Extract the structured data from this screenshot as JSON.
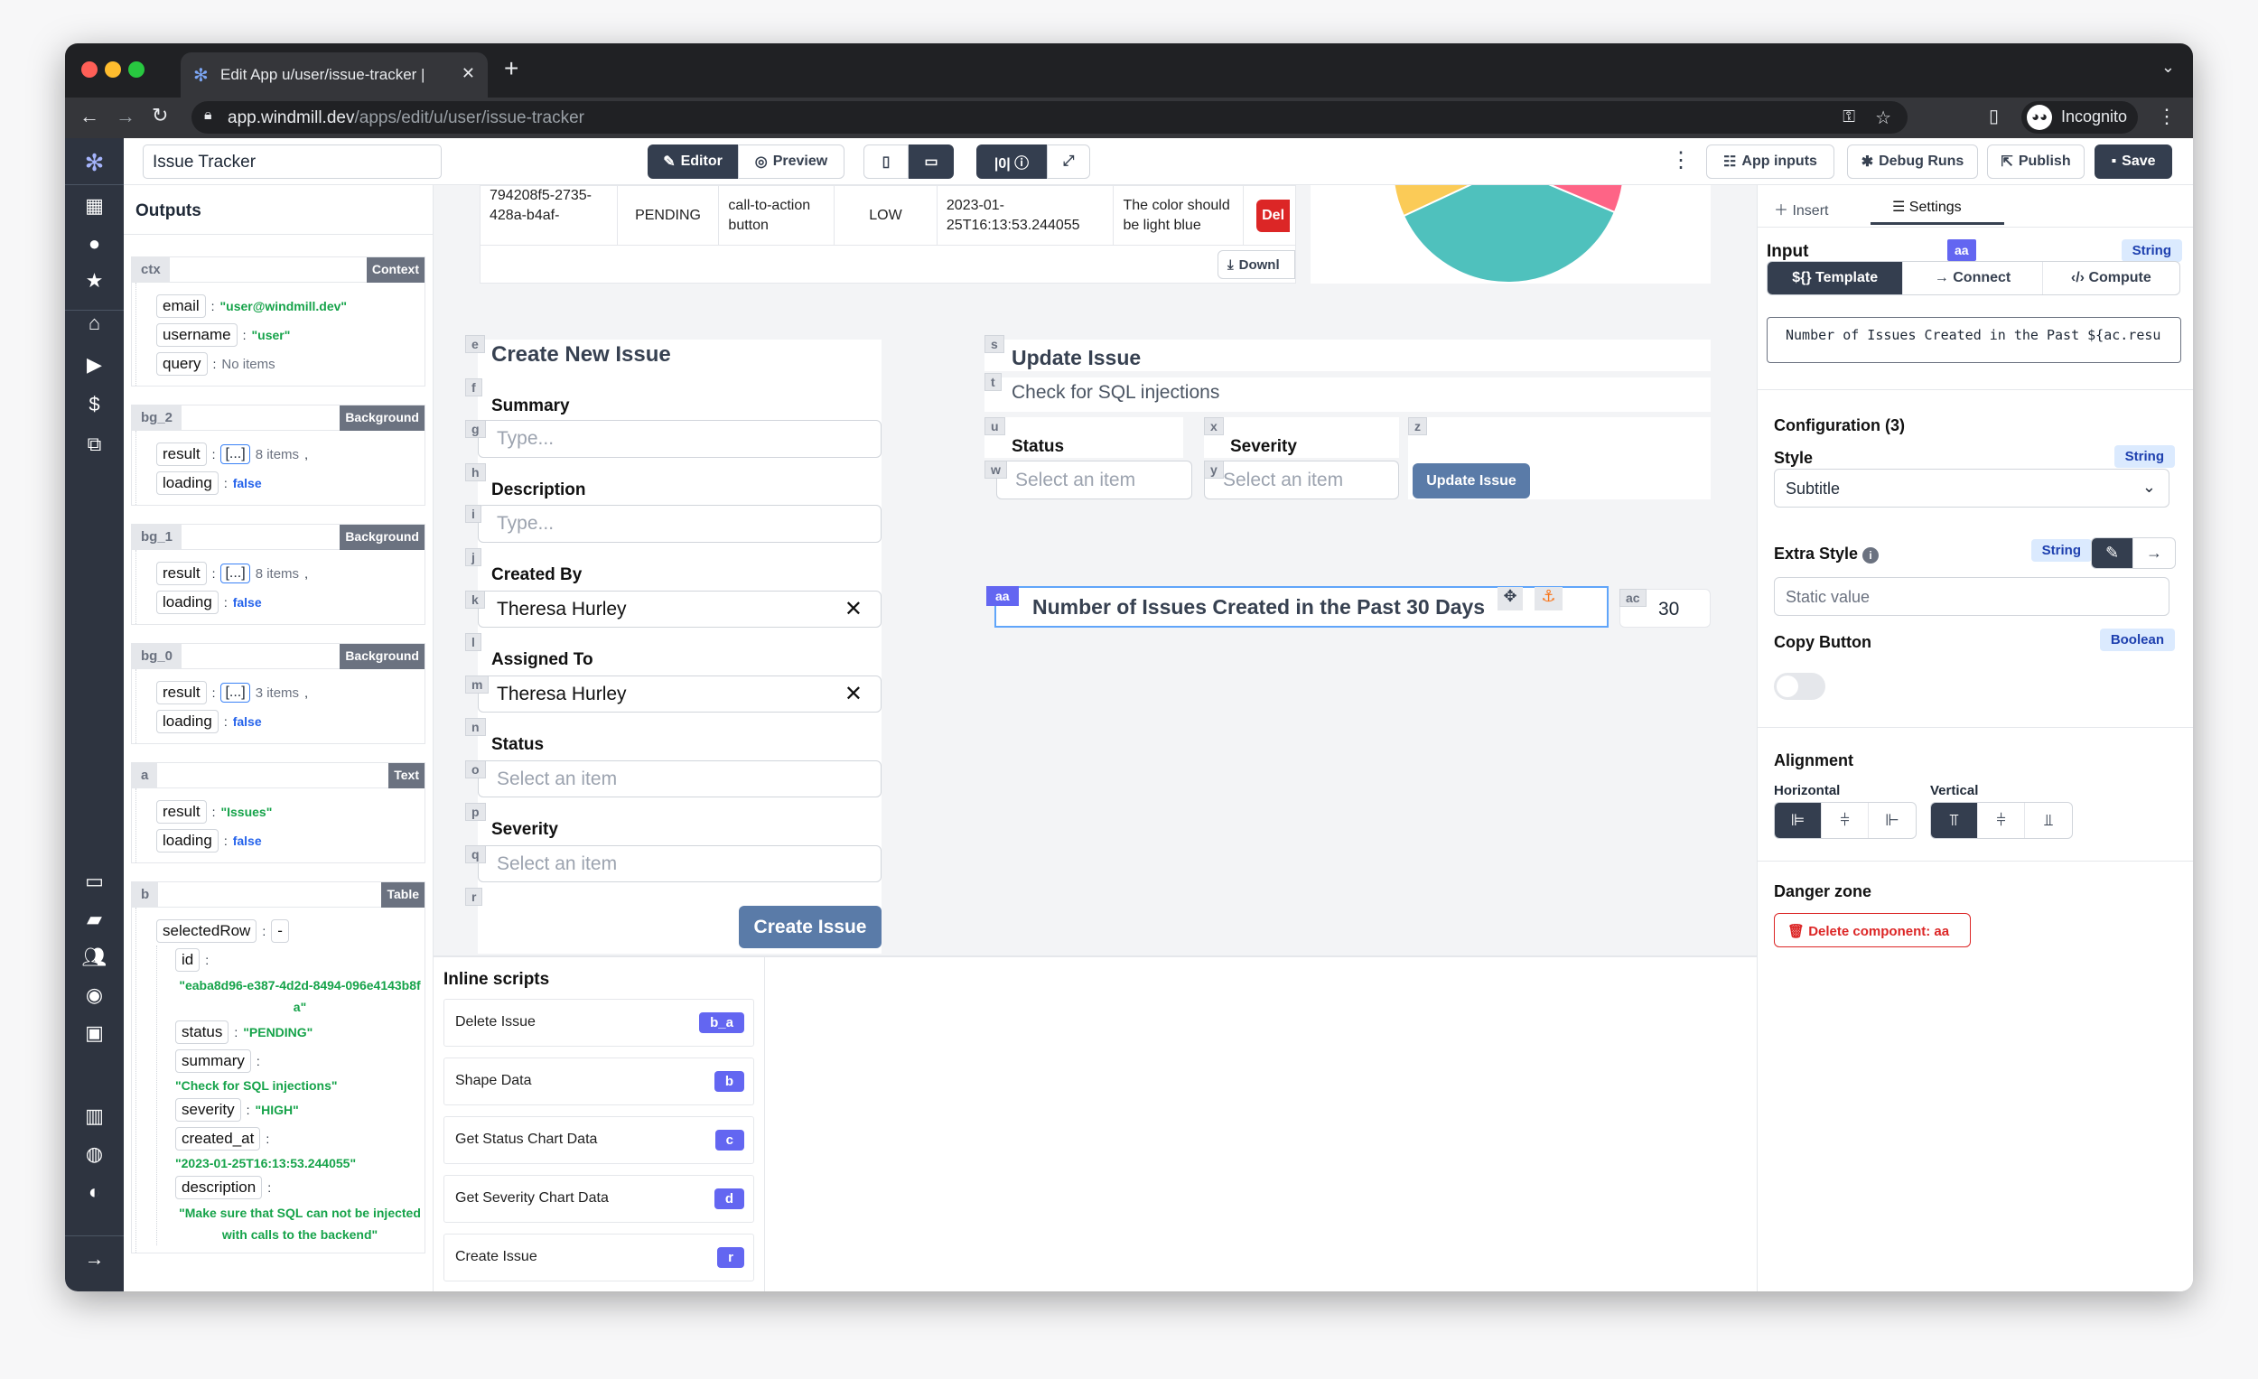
{
  "browser": {
    "tab_title": "Edit App u/user/issue-tracker |",
    "url_host": "app.windmill.dev",
    "url_path": "/apps/edit/u/user/issue-tracker",
    "profile": "Incognito"
  },
  "header": {
    "app_name": "Issue Tracker",
    "editor": "Editor",
    "preview": "Preview",
    "app_inputs": "App inputs",
    "debug_runs": "Debug Runs",
    "publish": "Publish",
    "save": "Save"
  },
  "outputs": {
    "title": "Outputs",
    "ctx": {
      "id": "ctx",
      "type": "Context",
      "email": "\"user@windmill.dev\"",
      "username": "\"user\"",
      "query": "No items"
    },
    "bg_2": {
      "id": "bg_2",
      "type": "Background",
      "result": "8 items",
      "loading": "false"
    },
    "bg_1": {
      "id": "bg_1",
      "type": "Background",
      "result": "8 items",
      "loading": "false"
    },
    "bg_0": {
      "id": "bg_0",
      "type": "Background",
      "result": "3 items",
      "loading": "false"
    },
    "a": {
      "id": "a",
      "type": "Text",
      "result": "\"Issues\"",
      "loading": "false"
    },
    "b": {
      "id": "b",
      "type": "Table",
      "selectedRow": "-",
      "row_id": "\"eaba8d96-e387-4d2d-8494-096e4143b8fa\"",
      "status": "\"PENDING\"",
      "summary": "\"Check for SQL injections\"",
      "severity": "\"HIGH\"",
      "created_at": "\"2023-01-25T16:13:53.244055\"",
      "description": "\"Make sure that SQL can not be injected with calls to the backend\""
    },
    "keys": {
      "email": "email",
      "username": "username",
      "query": "query",
      "result": "result",
      "loading": "loading",
      "selectedRow": "selectedRow",
      "id": "id",
      "status": "status",
      "summary": "summary",
      "severity": "severity",
      "created_at": "created_at",
      "description": "description",
      "array": "[...]"
    }
  },
  "table": {
    "row": [
      "794208f5-2735-428a-b4af-",
      "PENDING",
      "call-to-action button",
      "LOW",
      "2023-01-25T16:13:53.244055",
      "The color should be light blue",
      "Del"
    ],
    "download": "Downl"
  },
  "create_form": {
    "title": "Create New Issue",
    "summary_label": "Summary",
    "summary_placeholder": "Type...",
    "description_label": "Description",
    "description_placeholder": "Type...",
    "created_by_label": "Created By",
    "created_by_value": "Theresa Hurley",
    "assigned_to_label": "Assigned To",
    "assigned_to_value": "Theresa Hurley",
    "status_label": "Status",
    "status_placeholder": "Select an item",
    "severity_label": "Severity",
    "severity_placeholder": "Select an item",
    "submit": "Create Issue",
    "ids": [
      "e",
      "f",
      "g",
      "h",
      "i",
      "j",
      "k",
      "l",
      "m",
      "n",
      "o",
      "p",
      "q",
      "r"
    ]
  },
  "update_form": {
    "title": "Update Issue",
    "summary": "Check for SQL injections",
    "status_label": "Status",
    "status_placeholder": "Select an item",
    "severity_label": "Severity",
    "severity_placeholder": "Select an item",
    "submit": "Update Issue",
    "ids": [
      "s",
      "t",
      "u",
      "x",
      "z",
      "w",
      "y"
    ]
  },
  "text_component": {
    "id": "aa",
    "text": "Number of Issues Created in the Past 30 Days",
    "ac_id": "ac",
    "ac_value": "30"
  },
  "inline_scripts": {
    "title": "Inline scripts",
    "items": [
      {
        "name": "Delete Issue",
        "id": "b_a"
      },
      {
        "name": "Shape Data",
        "id": "b"
      },
      {
        "name": "Get Status Chart Data",
        "id": "c"
      },
      {
        "name": "Get Severity Chart Data",
        "id": "d"
      },
      {
        "name": "Create Issue",
        "id": "r"
      }
    ]
  },
  "settings": {
    "tab_insert": "Insert",
    "tab_settings": "Settings",
    "input_label": "Input",
    "component_id": "aa",
    "input_type": "String",
    "mode_template": "${} Template",
    "mode_connect": "Connect",
    "mode_compute": "Compute",
    "template_value": "Number of Issues Created in the Past ${ac.resu",
    "config_title": "Configuration (3)",
    "style_label": "Style",
    "style_type": "String",
    "style_value": "Subtitle",
    "extra_style_label": "Extra Style",
    "extra_style_type": "String",
    "extra_style_placeholder": "Static value",
    "copy_label": "Copy Button",
    "copy_type": "Boolean",
    "copy_enabled": false,
    "alignment_title": "Alignment",
    "horizontal": "Horizontal",
    "vertical": "Vertical",
    "horizontal_selected": "left",
    "vertical_selected": "top",
    "danger_title": "Danger zone",
    "delete_label": "Delete component: aa"
  },
  "colors": {
    "accent": "#343e4f",
    "component_badge": "#6366f1",
    "danger": "#dc2626",
    "pie": [
      "#4fc1bd",
      "#fbcb57",
      "#fe6486"
    ]
  }
}
